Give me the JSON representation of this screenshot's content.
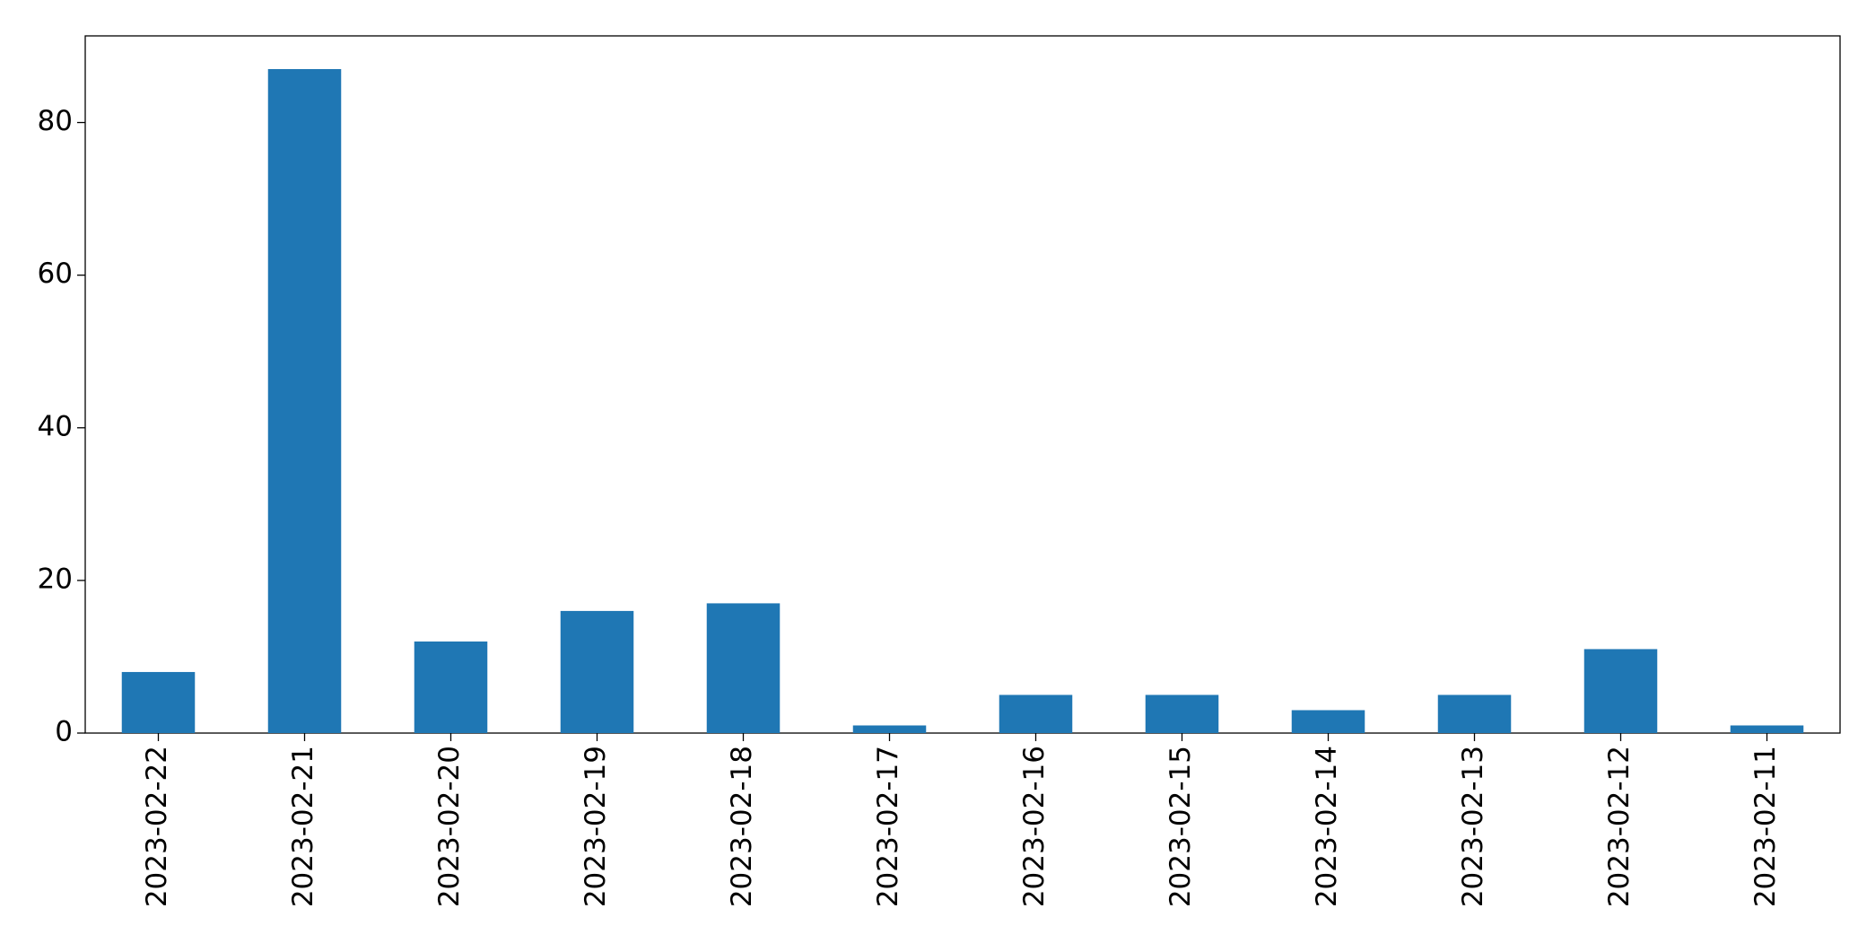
{
  "chart_data": {
    "type": "bar",
    "categories": [
      "2023-02-22",
      "2023-02-21",
      "2023-02-20",
      "2023-02-19",
      "2023-02-18",
      "2023-02-17",
      "2023-02-16",
      "2023-02-15",
      "2023-02-14",
      "2023-02-13",
      "2023-02-12",
      "2023-02-11"
    ],
    "values": [
      8,
      87,
      12,
      16,
      17,
      1,
      5,
      5,
      3,
      5,
      11,
      1
    ],
    "color": "#1f77b4",
    "ylim": [
      0,
      91.35
    ],
    "yticks": [
      0,
      20,
      40,
      60,
      80
    ],
    "grid": false
  }
}
